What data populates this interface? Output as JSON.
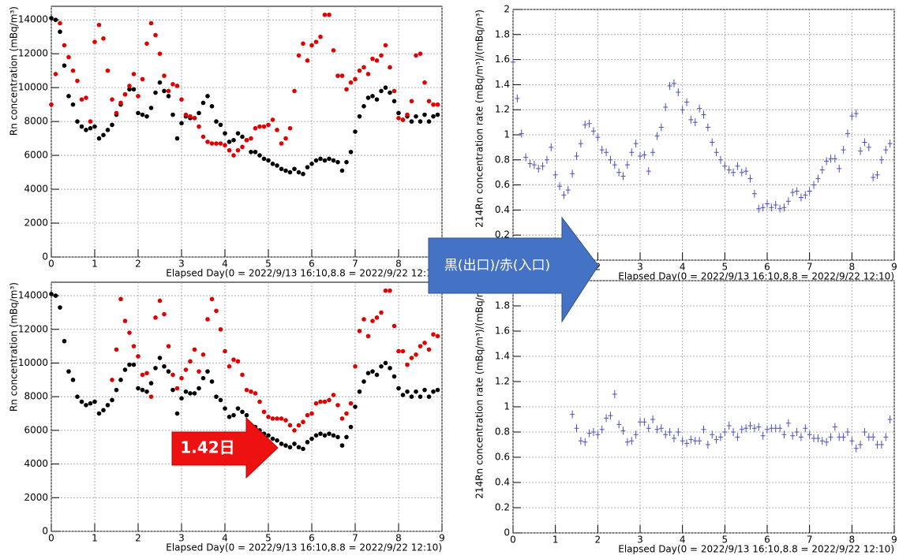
{
  "chart_data": [
    {
      "type": "scatter",
      "ylabel": "Rn concentration (mBq/m³)",
      "xlabel": "Elapsed Day(0 = 2022/9/13 16:10,8.8 = 2022/9/22 12:10)",
      "xlim": [
        0,
        9
      ],
      "xticks": [
        0,
        1,
        2,
        3,
        4,
        5,
        6,
        7,
        8,
        9
      ],
      "ylim": [
        0,
        14800
      ],
      "yticks": [
        0,
        2000,
        4000,
        6000,
        8000,
        10000,
        12000,
        14000
      ],
      "grid": true,
      "marker": "dot",
      "x": [
        0,
        0.1,
        0.2,
        0.3,
        0.4,
        0.5,
        0.6,
        0.7,
        0.8,
        0.9,
        1,
        1.1,
        1.2,
        1.3,
        1.4,
        1.5,
        1.6,
        1.7,
        1.8,
        1.9,
        2,
        2.1,
        2.2,
        2.3,
        2.4,
        2.5,
        2.6,
        2.7,
        2.8,
        2.9,
        3,
        3.1,
        3.2,
        3.3,
        3.4,
        3.5,
        3.6,
        3.7,
        3.8,
        3.9,
        4,
        4.1,
        4.2,
        4.3,
        4.4,
        4.5,
        4.6,
        4.7,
        4.8,
        4.9,
        5,
        5.1,
        5.2,
        5.3,
        5.4,
        5.5,
        5.6,
        5.7,
        5.8,
        5.9,
        6,
        6.1,
        6.2,
        6.3,
        6.4,
        6.5,
        6.6,
        6.7,
        6.8,
        6.9,
        7,
        7.1,
        7.2,
        7.3,
        7.4,
        7.5,
        7.6,
        7.7,
        7.8,
        7.9,
        8,
        8.1,
        8.2,
        8.3,
        8.4,
        8.5,
        8.6,
        8.7,
        8.8,
        8.9
      ],
      "series": [
        {
          "color": "#000000",
          "values": [
            14100,
            14000,
            13300,
            11300,
            9500,
            9000,
            8000,
            7700,
            7500,
            7600,
            7700,
            7000,
            7200,
            7500,
            7800,
            8400,
            9000,
            9600,
            9900,
            9900,
            8500,
            8400,
            8300,
            8800,
            9700,
            10300,
            9800,
            9500,
            8400,
            7000,
            7900,
            8300,
            8200,
            8200,
            8500,
            9100,
            9500,
            8900,
            8000,
            7800,
            7300,
            6800,
            6900,
            7300,
            7100,
            6900,
            6200,
            6200,
            6000,
            5800,
            5700,
            5500,
            5400,
            5200,
            5100,
            5000,
            5200,
            5000,
            4900,
            5300,
            5500,
            5700,
            5800,
            5700,
            5800,
            5700,
            5600,
            5100,
            5600,
            6200,
            7400,
            8300,
            8900,
            9400,
            9500,
            9300,
            9800,
            10000,
            9700,
            9200,
            8500,
            8100,
            8300,
            8000,
            8300,
            8000,
            8400,
            8000,
            8300,
            8400
          ]
        },
        {
          "color": "#e00000",
          "values": [
            9000,
            10800,
            13800,
            12500,
            11800,
            11000,
            10400,
            9300,
            9400,
            8000,
            12700,
            13700,
            12900,
            11000,
            9300,
            8500,
            9100,
            9600,
            10100,
            10800,
            9500,
            10500,
            12600,
            13800,
            13100,
            12000,
            10700,
            9800,
            10200,
            10100,
            9300,
            8400,
            8300,
            8200,
            7700,
            7100,
            6800,
            6700,
            6700,
            6700,
            6600,
            6300,
            6000,
            6300,
            6500,
            6900,
            7000,
            7600,
            7700,
            7700,
            7800,
            8100,
            7500,
            6700,
            7000,
            7600,
            9800,
            11900,
            12600,
            11600,
            12500,
            12700,
            13000,
            14300,
            14300,
            12200,
            10700,
            10700,
            9900,
            10300,
            10500,
            11000,
            11200,
            10800,
            11700,
            11600,
            11900,
            12500,
            11200,
            9800,
            8200,
            8100,
            8400,
            9200,
            11900,
            12000,
            10300,
            9200,
            9000,
            9000
          ]
        }
      ]
    },
    {
      "type": "scatter",
      "ylabel": "214Rn concentration rate (mBq/m³)/(mBq/m³)",
      "xlabel": "Elapsed Day(0 = 2022/9/13 16:10,8.8 = 2022/9/22 12:10)",
      "xlim": [
        0,
        9
      ],
      "xticks": [
        0,
        1,
        2,
        3,
        4,
        5,
        6,
        7,
        8,
        9
      ],
      "ylim": [
        0,
        2
      ],
      "yticks": [
        0,
        0.2,
        0.4,
        0.6,
        0.8,
        1,
        1.2,
        1.4,
        1.6,
        1.8,
        2
      ],
      "grid": true,
      "marker": "cross",
      "x": [
        0,
        0.1,
        0.2,
        0.3,
        0.4,
        0.5,
        0.6,
        0.7,
        0.8,
        0.9,
        1,
        1.1,
        1.2,
        1.3,
        1.4,
        1.5,
        1.6,
        1.7,
        1.8,
        1.9,
        2,
        2.1,
        2.2,
        2.3,
        2.4,
        2.5,
        2.6,
        2.7,
        2.8,
        2.9,
        3,
        3.1,
        3.2,
        3.3,
        3.4,
        3.5,
        3.6,
        3.7,
        3.8,
        3.9,
        4,
        4.1,
        4.2,
        4.3,
        4.4,
        4.5,
        4.6,
        4.7,
        4.8,
        4.9,
        5,
        5.1,
        5.2,
        5.3,
        5.4,
        5.5,
        5.6,
        5.7,
        5.8,
        5.9,
        6,
        6.1,
        6.2,
        6.3,
        6.4,
        6.5,
        6.6,
        6.7,
        6.8,
        6.9,
        7,
        7.1,
        7.2,
        7.3,
        7.4,
        7.5,
        7.6,
        7.7,
        7.8,
        7.9,
        8,
        8.1,
        8.2,
        8.3,
        8.4,
        8.5,
        8.6,
        8.7,
        8.8,
        8.9
      ],
      "series": [
        {
          "color": "#4a4fc0",
          "values": [
            1.58,
            1.29,
            1.01,
            0.82,
            0.77,
            0.76,
            0.73,
            0.75,
            0.8,
            0.9,
            0.68,
            0.59,
            0.52,
            0.56,
            0.69,
            0.83,
            0.93,
            1.08,
            1.09,
            1.03,
            0.98,
            0.88,
            0.86,
            0.8,
            0.76,
            0.7,
            0.67,
            0.76,
            0.86,
            0.93,
            0.83,
            0.84,
            0.71,
            0.86,
            0.99,
            1.06,
            1.22,
            1.39,
            1.41,
            1.34,
            1.2,
            1.26,
            1.12,
            1.1,
            1.21,
            1.16,
            1.06,
            0.94,
            0.86,
            0.8,
            0.75,
            0.72,
            0.7,
            0.75,
            0.7,
            0.71,
            0.65,
            0.53,
            0.41,
            0.42,
            0.45,
            0.42,
            0.44,
            0.41,
            0.42,
            0.47,
            0.54,
            0.55,
            0.5,
            0.52,
            0.55,
            0.6,
            0.65,
            0.72,
            0.79,
            0.81,
            0.81,
            0.73,
            0.88,
            1.01,
            1.15,
            1.17,
            0.87,
            0.94,
            0.9,
            0.66,
            0.68,
            0.8,
            0.88,
            0.93
          ]
        }
      ]
    },
    {
      "type": "scatter",
      "ylabel": "Rn concentration (mBq/m³)",
      "xlabel": "Elapsed Day(0 = 2022/9/13 16:10,8.8 = 2022/9/22 12:10)",
      "xlim": [
        0,
        9
      ],
      "xticks": [
        0,
        1,
        2,
        3,
        4,
        5,
        6,
        7,
        8,
        9
      ],
      "ylim": [
        0,
        14800
      ],
      "yticks": [
        0,
        2000,
        4000,
        6000,
        8000,
        10000,
        12000,
        14000
      ],
      "grid": true,
      "marker": "dot",
      "x": [
        0,
        0.1,
        0.2,
        0.3,
        0.4,
        0.5,
        0.6,
        0.7,
        0.8,
        0.9,
        1,
        1.1,
        1.2,
        1.3,
        1.4,
        1.5,
        1.6,
        1.7,
        1.8,
        1.9,
        2,
        2.1,
        2.2,
        2.3,
        2.4,
        2.5,
        2.6,
        2.7,
        2.8,
        2.9,
        3,
        3.1,
        3.2,
        3.3,
        3.4,
        3.5,
        3.6,
        3.7,
        3.8,
        3.9,
        4,
        4.1,
        4.2,
        4.3,
        4.4,
        4.5,
        4.6,
        4.7,
        4.8,
        4.9,
        5,
        5.1,
        5.2,
        5.3,
        5.4,
        5.5,
        5.6,
        5.7,
        5.8,
        5.9,
        6,
        6.1,
        6.2,
        6.3,
        6.4,
        6.5,
        6.6,
        6.7,
        6.8,
        6.9,
        7,
        7.1,
        7.2,
        7.3,
        7.4,
        7.5,
        7.6,
        7.7,
        7.8,
        7.9,
        8,
        8.1,
        8.2,
        8.3,
        8.4,
        8.5,
        8.6,
        8.7,
        8.8,
        8.9
      ],
      "series": [
        {
          "color": "#000000",
          "values": [
            14100,
            14000,
            13300,
            11300,
            9500,
            9000,
            8000,
            7700,
            7500,
            7600,
            7700,
            7000,
            7200,
            7500,
            7800,
            8400,
            9000,
            9600,
            9900,
            9900,
            8500,
            8400,
            8300,
            8800,
            9700,
            10300,
            9800,
            9500,
            8400,
            7000,
            7900,
            8300,
            8200,
            8200,
            8500,
            9100,
            9500,
            8900,
            8000,
            7800,
            7300,
            6800,
            6900,
            7300,
            7100,
            6900,
            6200,
            6200,
            6000,
            5800,
            5700,
            5500,
            5400,
            5200,
            5100,
            5000,
            5200,
            5000,
            4900,
            5300,
            5500,
            5700,
            5800,
            5700,
            5800,
            5700,
            5600,
            5100,
            5600,
            6200,
            7400,
            8300,
            8900,
            9400,
            9500,
            9300,
            9800,
            10000,
            9700,
            9200,
            8500,
            8100,
            8300,
            8000,
            8300,
            8000,
            8400,
            8000,
            8300,
            8400
          ]
        },
        {
          "color": "#e00000",
          "values": [
            null,
            null,
            null,
            null,
            null,
            null,
            null,
            null,
            null,
            null,
            null,
            null,
            null,
            null,
            9000,
            10800,
            13800,
            12500,
            11800,
            11000,
            10400,
            9300,
            9400,
            8000,
            12700,
            13700,
            12900,
            11000,
            9300,
            8500,
            9100,
            9600,
            10100,
            10800,
            9500,
            10500,
            12600,
            13800,
            13100,
            12000,
            10700,
            9800,
            10200,
            10100,
            9300,
            8400,
            8300,
            8200,
            7700,
            7100,
            6800,
            6700,
            6700,
            6700,
            6600,
            6300,
            6000,
            6300,
            6500,
            6900,
            7000,
            7600,
            7700,
            7700,
            7800,
            8100,
            7500,
            6700,
            7000,
            7600,
            9800,
            11900,
            12600,
            11600,
            12500,
            12700,
            13000,
            14300,
            14300,
            12200,
            10700,
            10700,
            9900,
            10300,
            10500,
            11000,
            11200,
            10800,
            11700,
            11600
          ]
        }
      ]
    },
    {
      "type": "scatter",
      "ylabel": "214Rn concentration rate (mBq/m³)/(mBq/m³)",
      "xlabel": "Elapsed Day(0 = 2022/9/13 16:10,8.8 = 2022/9/22 12:10)",
      "xlim": [
        0,
        9
      ],
      "xticks": [
        0,
        1,
        2,
        3,
        4,
        5,
        6,
        7,
        8,
        9
      ],
      "ylim": [
        0,
        2
      ],
      "yticks": [
        0,
        0.2,
        0.4,
        0.6,
        0.8,
        1,
        1.2,
        1.4,
        1.6,
        1.8,
        2
      ],
      "grid": true,
      "marker": "cross",
      "x": [
        0,
        0.1,
        0.2,
        0.3,
        0.4,
        0.5,
        0.6,
        0.7,
        0.8,
        0.9,
        1,
        1.1,
        1.2,
        1.3,
        1.4,
        1.5,
        1.6,
        1.7,
        1.8,
        1.9,
        2,
        2.1,
        2.2,
        2.3,
        2.4,
        2.5,
        2.6,
        2.7,
        2.8,
        2.9,
        3,
        3.1,
        3.2,
        3.3,
        3.4,
        3.5,
        3.6,
        3.7,
        3.8,
        3.9,
        4,
        4.1,
        4.2,
        4.3,
        4.4,
        4.5,
        4.6,
        4.7,
        4.8,
        4.9,
        5,
        5.1,
        5.2,
        5.3,
        5.4,
        5.5,
        5.6,
        5.7,
        5.8,
        5.9,
        6,
        6.1,
        6.2,
        6.3,
        6.4,
        6.5,
        6.6,
        6.7,
        6.8,
        6.9,
        7,
        7.1,
        7.2,
        7.3,
        7.4,
        7.5,
        7.6,
        7.7,
        7.8,
        7.9,
        8,
        8.1,
        8.2,
        8.3,
        8.4,
        8.5,
        8.6,
        8.7,
        8.8,
        8.9
      ],
      "series": [
        {
          "color": "#4a4fc0",
          "values": [
            null,
            null,
            null,
            null,
            null,
            null,
            null,
            null,
            null,
            null,
            null,
            null,
            null,
            null,
            0.94,
            0.83,
            0.73,
            0.72,
            0.79,
            0.8,
            0.78,
            0.82,
            0.91,
            0.93,
            1.1,
            0.86,
            0.81,
            0.72,
            0.73,
            0.78,
            0.88,
            0.88,
            0.83,
            0.9,
            0.82,
            0.83,
            0.78,
            0.8,
            0.75,
            0.8,
            0.73,
            0.71,
            0.74,
            0.73,
            0.73,
            0.82,
            0.7,
            0.78,
            0.74,
            0.76,
            0.8,
            0.85,
            0.8,
            0.76,
            0.82,
            0.83,
            0.85,
            0.83,
            0.84,
            0.77,
            0.82,
            0.83,
            0.83,
            0.83,
            0.78,
            0.87,
            0.77,
            0.8,
            0.76,
            0.83,
            0.78,
            0.75,
            0.75,
            0.73,
            0.72,
            0.76,
            0.84,
            0.76,
            0.76,
            0.8,
            0.73,
            0.67,
            0.7,
            0.8,
            0.76,
            0.76,
            0.7,
            0.7,
            0.76,
            0.9
          ]
        }
      ]
    }
  ],
  "annotations": [
    "黒(出口)/赤(入口)",
    "1.42日"
  ]
}
